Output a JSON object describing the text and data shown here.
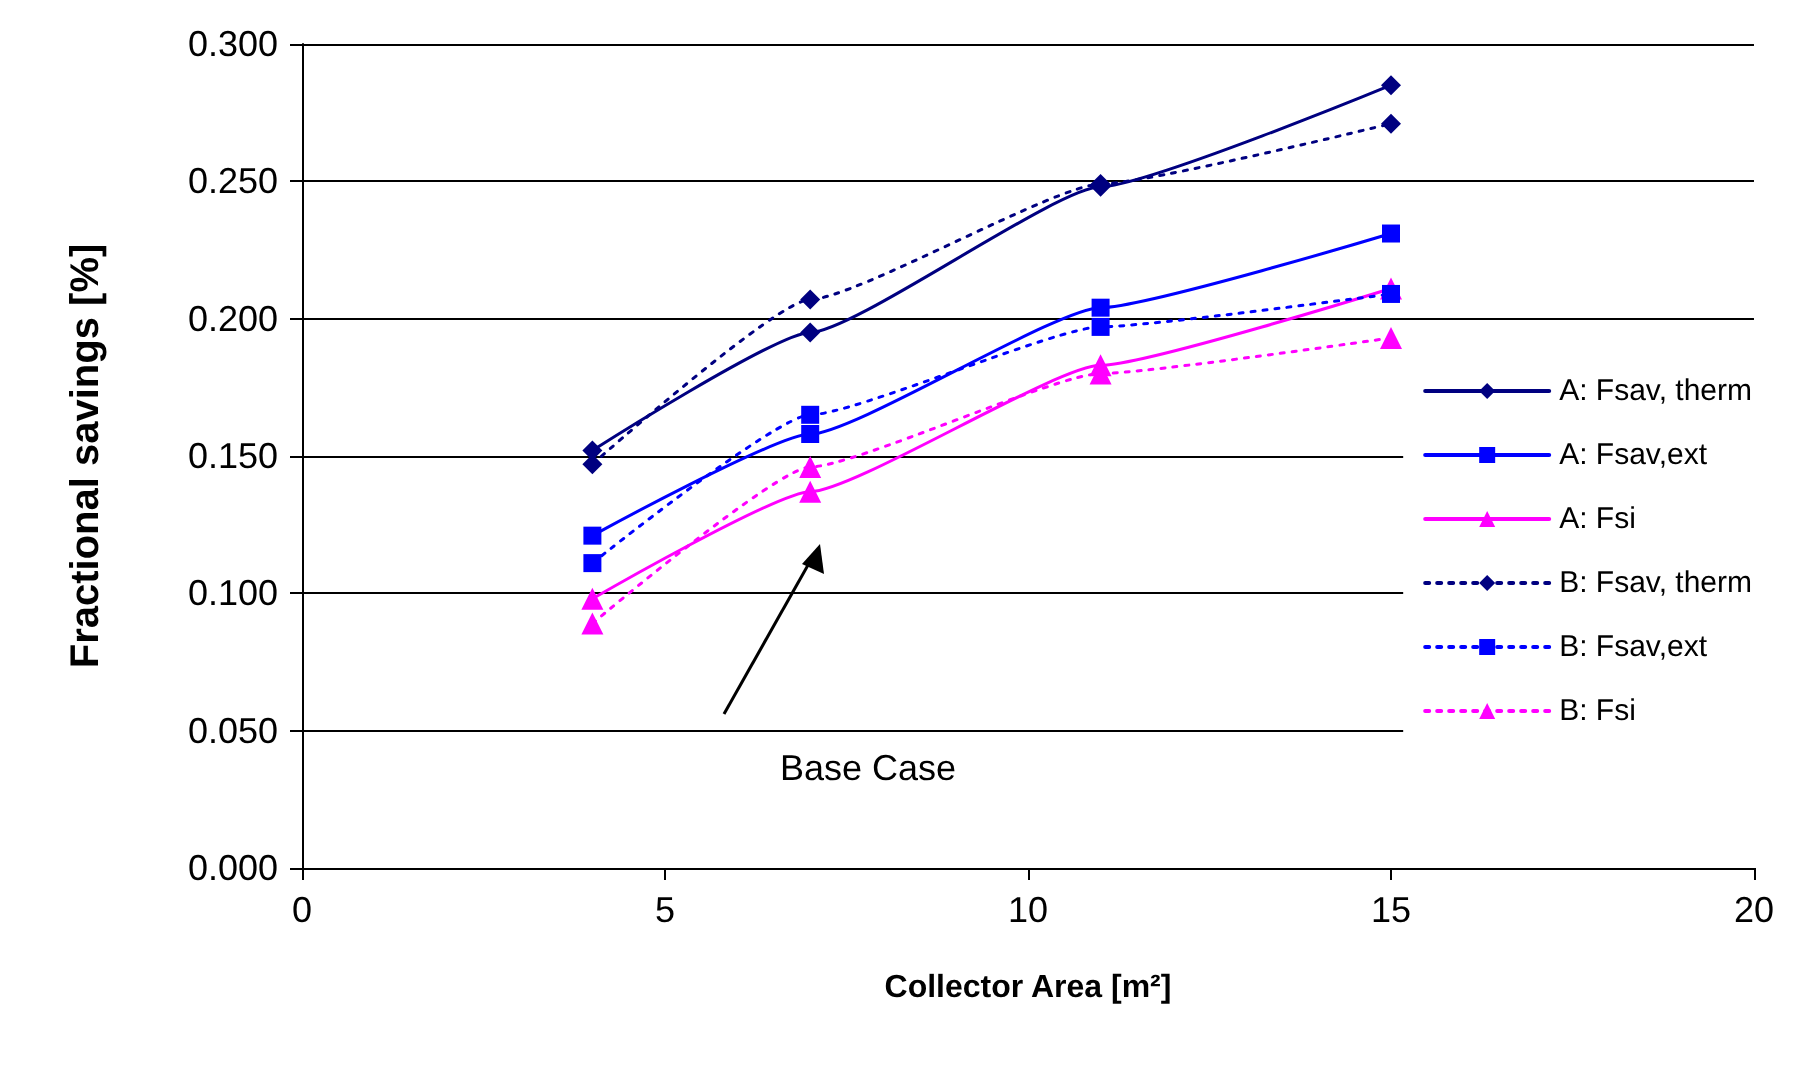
{
  "chart_data": {
    "type": "line",
    "xlabel": "Collector Area [m²]",
    "ylabel": "Fractional savings [%]",
    "xlim": [
      0,
      20
    ],
    "xticks": [
      0,
      5,
      10,
      15,
      20
    ],
    "ylim": [
      0,
      0.3
    ],
    "yticks": [
      {
        "value": 0,
        "label": "0.000"
      },
      {
        "value": 0.05,
        "label": "0.050"
      },
      {
        "value": 0.1,
        "label": "0.100"
      },
      {
        "value": 0.15,
        "label": "0.150"
      },
      {
        "value": 0.2,
        "label": "0.200"
      },
      {
        "value": 0.25,
        "label": "0.250"
      },
      {
        "value": 0.3,
        "label": "0.300"
      }
    ],
    "grid": "y",
    "legend": "right",
    "x": [
      4,
      7,
      11,
      15
    ],
    "series": [
      {
        "name": "A: Fsav, therm",
        "color": "#000080",
        "marker": "diamond",
        "line_style": "solid",
        "values": [
          0.152,
          0.195,
          0.248,
          0.285
        ]
      },
      {
        "name": "A: Fsav,ext",
        "color": "#0000ff",
        "marker": "square",
        "line_style": "solid",
        "values": [
          0.121,
          0.158,
          0.204,
          0.231
        ]
      },
      {
        "name": "A: Fsi",
        "color": "#ff00ff",
        "marker": "triangle",
        "line_style": "solid",
        "values": [
          0.098,
          0.137,
          0.183,
          0.211
        ]
      },
      {
        "name": "B: Fsav, therm",
        "color": "#000080",
        "marker": "diamond",
        "line_style": "dotted",
        "values": [
          0.147,
          0.207,
          0.249,
          0.271
        ]
      },
      {
        "name": "B: Fsav,ext",
        "color": "#0000ff",
        "marker": "square",
        "line_style": "dotted",
        "values": [
          0.111,
          0.165,
          0.197,
          0.209
        ]
      },
      {
        "name": "B: Fsi",
        "color": "#ff00ff",
        "marker": "triangle",
        "line_style": "dotted",
        "values": [
          0.089,
          0.146,
          0.18,
          0.193
        ]
      }
    ],
    "annotations": [
      "Base Case"
    ]
  }
}
